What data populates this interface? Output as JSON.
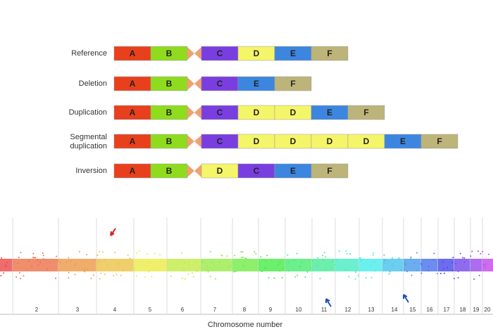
{
  "rows": [
    {
      "label": "Reference",
      "left": [
        "A",
        "B"
      ],
      "right": [
        "C",
        "D",
        "E",
        "F"
      ]
    },
    {
      "label": "Deletion",
      "left": [
        "A",
        "B"
      ],
      "right": [
        "C",
        "E",
        "F"
      ]
    },
    {
      "label": "Duplication",
      "left": [
        "A",
        "B"
      ],
      "right": [
        "C",
        "D",
        "D",
        "E",
        "F"
      ]
    },
    {
      "label": "Segmental duplication",
      "left": [
        "A",
        "B"
      ],
      "right": [
        "C",
        "D",
        "D",
        "D",
        "D",
        "E",
        "F"
      ]
    },
    {
      "label": "Inversion",
      "left": [
        "A",
        "B"
      ],
      "right": [
        "D",
        "C",
        "E",
        "F"
      ]
    }
  ],
  "segment_colors": {
    "A": "#e8401c",
    "B": "#8fdc1e",
    "C": "#7a3ee0",
    "D": "#f5f56a",
    "E": "#3c86e0",
    "F": "#bdb47a"
  },
  "plot": {
    "chromosomes": [
      "2",
      "3",
      "4",
      "5",
      "6",
      "7",
      "8",
      "9",
      "10",
      "11",
      "12",
      "13",
      "14",
      "15",
      "16",
      "17",
      "18",
      "19",
      "20"
    ],
    "x_label": "Chromosome number"
  }
}
